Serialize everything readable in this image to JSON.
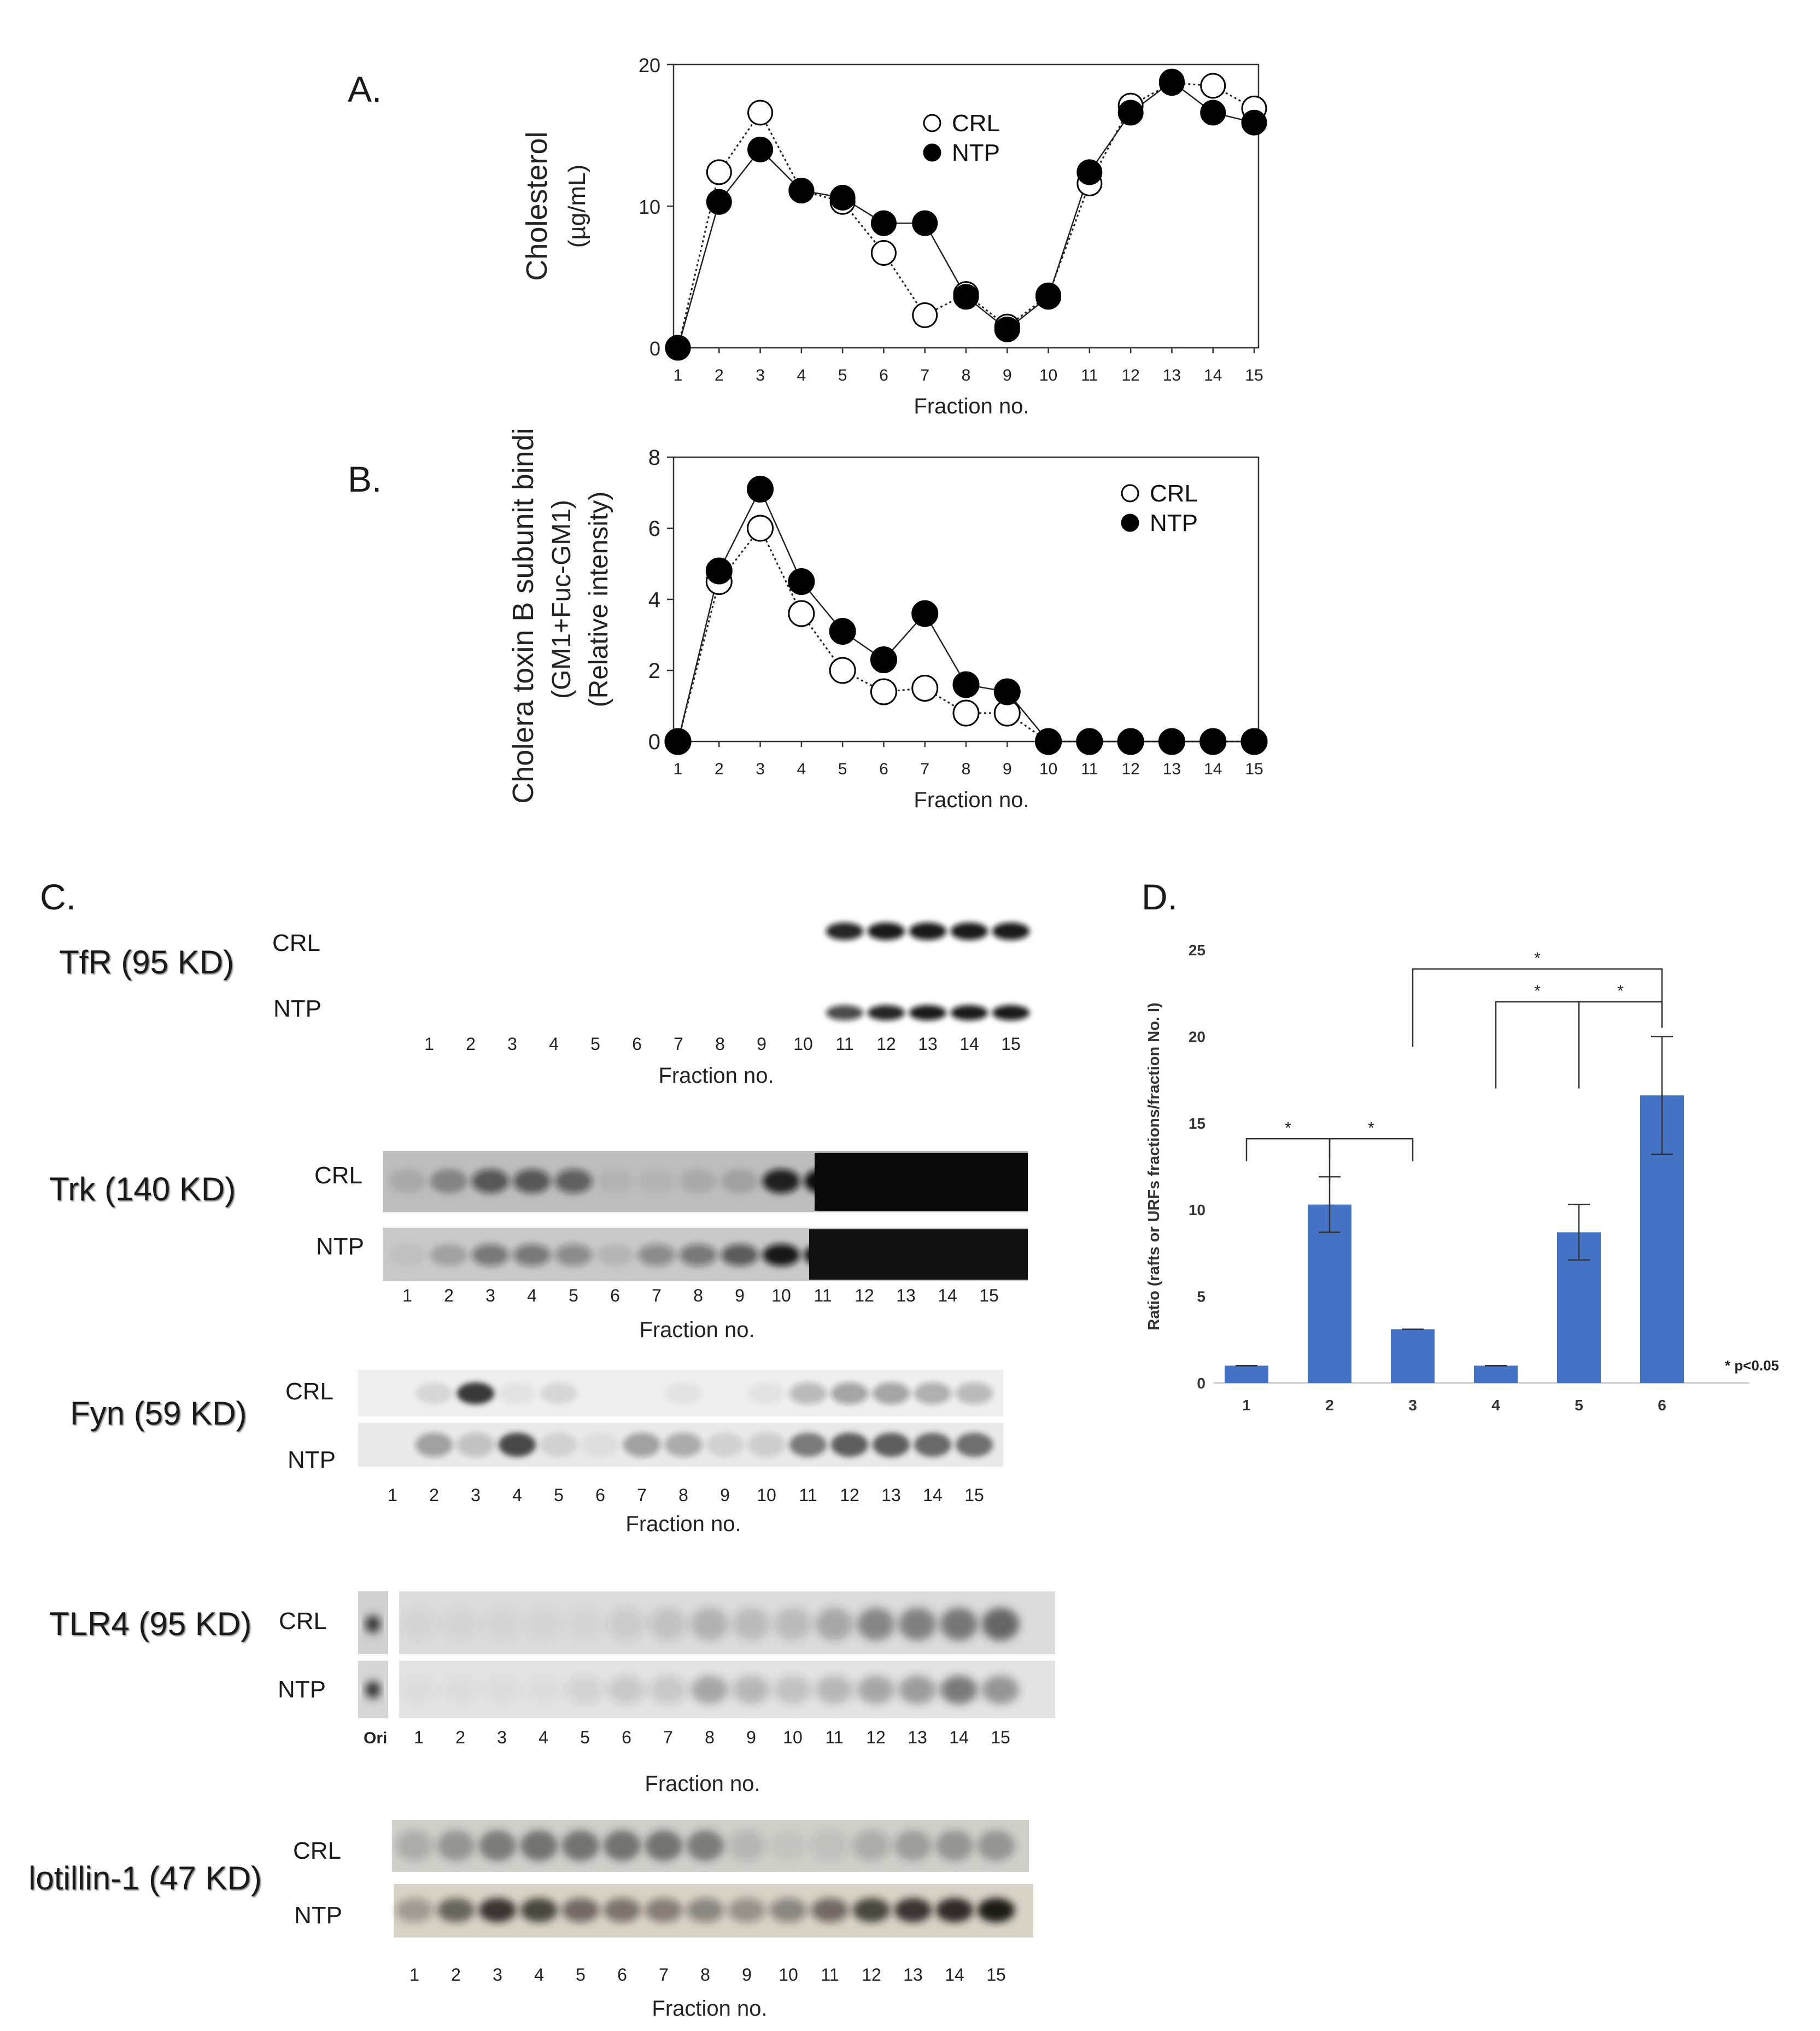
{
  "panels": {
    "a_letter": "A.",
    "b_letter": "B.",
    "c_letter": "C.",
    "d_letter": "D."
  },
  "chart_data": [
    {
      "id": "A",
      "type": "line",
      "title": "",
      "xlabel": "Fraction no.",
      "ylabel": "Cholesterol",
      "ylabel2": "(µg/mL)",
      "categories": [
        "1",
        "2",
        "3",
        "4",
        "5",
        "6",
        "7",
        "8",
        "9",
        "10",
        "11",
        "12",
        "13",
        "14",
        "15"
      ],
      "ylim": [
        0,
        20
      ],
      "yticks": [
        "0",
        "10",
        "20"
      ],
      "legend_position": "top-center",
      "series": [
        {
          "name": "CRL",
          "marker": "open-circle",
          "line": "dotted",
          "values": [
            0,
            12.4,
            16.6,
            11.1,
            10.3,
            6.7,
            2.3,
            3.8,
            1.5,
            3.7,
            11.6,
            17.1,
            18.7,
            18.5,
            16.9
          ]
        },
        {
          "name": "NTP",
          "marker": "filled-circle",
          "line": "solid",
          "values": [
            0,
            10.3,
            14.0,
            11.1,
            10.6,
            8.8,
            8.8,
            3.6,
            1.3,
            3.6,
            12.4,
            16.6,
            18.8,
            16.6,
            15.9
          ]
        }
      ]
    },
    {
      "id": "B",
      "type": "line",
      "title": "",
      "xlabel": "Fraction no.",
      "ylabel": "Cholera toxin B subunit binding",
      "ylabel2": "(GM1+Fuc-GM1)",
      "ylabel3": "(Relative intensity)",
      "categories": [
        "1",
        "2",
        "3",
        "4",
        "5",
        "6",
        "7",
        "8",
        "9",
        "10",
        "11",
        "12",
        "13",
        "14",
        "15"
      ],
      "ylim": [
        0,
        8
      ],
      "yticks": [
        "0",
        "2",
        "4",
        "6",
        "8"
      ],
      "legend_position": "top-right",
      "series": [
        {
          "name": "CRL",
          "marker": "open-circle",
          "line": "dotted",
          "values": [
            0,
            4.5,
            6.0,
            3.6,
            2.0,
            1.4,
            1.5,
            0.8,
            0.8,
            0,
            0,
            0,
            0,
            0,
            0
          ]
        },
        {
          "name": "NTP",
          "marker": "filled-circle",
          "line": "solid",
          "values": [
            0,
            4.8,
            7.1,
            4.5,
            3.1,
            2.3,
            3.6,
            1.6,
            1.4,
            0,
            0,
            0,
            0,
            0,
            0
          ]
        }
      ]
    },
    {
      "id": "D",
      "type": "bar",
      "title": "",
      "xlabel": "",
      "ylabel": "Ratio (rafts or URFs fractions/fraction No. I)",
      "categories": [
        "1",
        "2",
        "3",
        "4",
        "5",
        "6"
      ],
      "values": [
        1.0,
        10.3,
        3.1,
        1.0,
        8.7,
        16.6
      ],
      "errors": [
        0,
        1.6,
        0,
        0,
        1.6,
        3.4
      ],
      "ylim": [
        0,
        25
      ],
      "yticks": [
        "0",
        "5",
        "10",
        "15",
        "20",
        "25"
      ],
      "bar_color": "#4472c4",
      "significance": [
        {
          "from": "1",
          "to": "2",
          "label": "*"
        },
        {
          "from": "2",
          "to": "3",
          "label": "*"
        },
        {
          "from": "3",
          "to": "6",
          "label": "*"
        },
        {
          "from": "4",
          "to": "5",
          "label": "*"
        },
        {
          "from": "5",
          "to": "6",
          "label": "*"
        }
      ],
      "note": "* p<0.05"
    }
  ],
  "blots": {
    "fractions": [
      "1",
      "2",
      "3",
      "4",
      "5",
      "6",
      "7",
      "8",
      "9",
      "10",
      "11",
      "12",
      "13",
      "14",
      "15"
    ],
    "xlabel": "Fraction no.",
    "crl": "CRL",
    "ntp": "NTP",
    "ori": "Ori",
    "items": [
      {
        "title": "TfR (95 KD)"
      },
      {
        "title": "Trk (140 KD)"
      },
      {
        "title": "Fyn (59 KD)"
      },
      {
        "title": "TLR4 (95 KD)"
      },
      {
        "title": "lotillin-1 (47 KD)"
      }
    ]
  }
}
